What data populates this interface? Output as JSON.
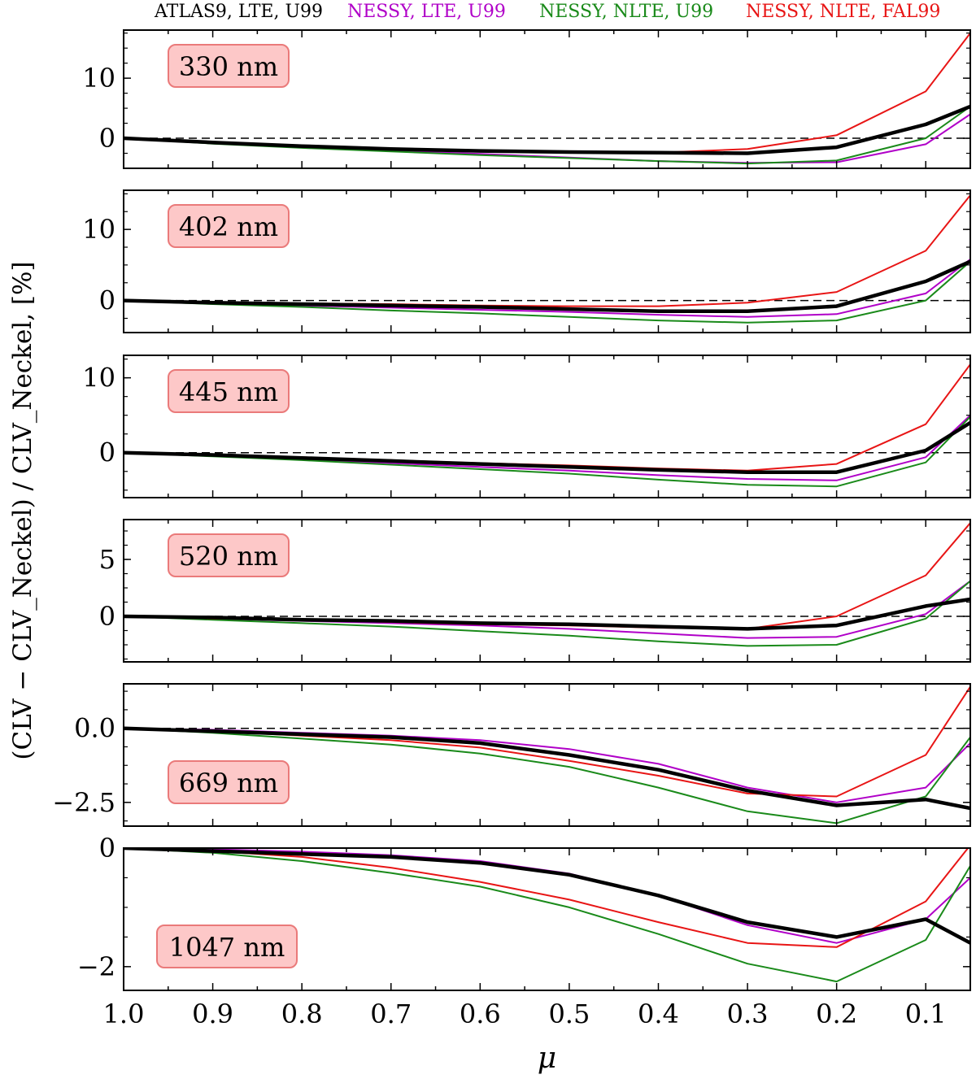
{
  "chart_data": {
    "type": "line",
    "ylabel": "(CLV − CLV_Neckel) / CLV_Neckel, [%]",
    "xlabel": "μ",
    "x": [
      1.0,
      0.9,
      0.8,
      0.7,
      0.6,
      0.5,
      0.4,
      0.3,
      0.2,
      0.1,
      0.05
    ],
    "xlim": [
      1.0,
      0.05
    ],
    "xticks": [
      1.0,
      0.9,
      0.8,
      0.7,
      0.6,
      0.5,
      0.4,
      0.3,
      0.2,
      0.1
    ],
    "xtick_labels": [
      "1.0",
      "0.9",
      "0.8",
      "0.7",
      "0.6",
      "0.5",
      "0.4",
      "0.3",
      "0.2",
      "0.1"
    ],
    "legend": [
      {
        "name": "ATLAS9, LTE, U99",
        "color": "#000000"
      },
      {
        "name": "NESSY, LTE, U99",
        "color": "#b000c8"
      },
      {
        "name": "NESSY, NLTE, U99",
        "color": "#1a8a1a"
      },
      {
        "name": "NESSY, NLTE, FAL99",
        "color": "#e81515"
      }
    ],
    "panels": [
      {
        "label": "330 nm",
        "ylim": [
          -5,
          18
        ],
        "yticks": [
          0,
          10
        ],
        "ytick_labels": [
          "0",
          "10"
        ],
        "series": [
          {
            "name": "ATLAS9, LTE, U99",
            "values": [
              0,
              -0.7,
              -1.3,
              -1.8,
              -2.1,
              -2.3,
              -2.4,
              -2.5,
              -1.5,
              2.3,
              5.3
            ]
          },
          {
            "name": "NESSY, LTE, U99",
            "values": [
              0,
              -0.8,
              -1.5,
              -2.1,
              -2.6,
              -3.2,
              -3.8,
              -4.1,
              -4.0,
              -1.0,
              4.0
            ]
          },
          {
            "name": "NESSY, NLTE, U99",
            "values": [
              0,
              -0.9,
              -1.6,
              -2.2,
              -2.8,
              -3.3,
              -3.8,
              -4.2,
              -3.7,
              0.0,
              5.3
            ]
          },
          {
            "name": "NESSY, NLTE, FAL99",
            "values": [
              0,
              -0.6,
              -1.2,
              -1.7,
              -2.0,
              -2.3,
              -2.4,
              -1.8,
              0.5,
              7.8,
              17.5
            ]
          }
        ]
      },
      {
        "label": "402 nm",
        "ylim": [
          -4.5,
          15.5
        ],
        "yticks": [
          0,
          10
        ],
        "ytick_labels": [
          "0",
          "10"
        ],
        "series": [
          {
            "name": "ATLAS9, LTE, U99",
            "values": [
              0,
              -0.3,
              -0.5,
              -0.7,
              -0.9,
              -1.2,
              -1.5,
              -1.5,
              -0.8,
              2.7,
              5.5
            ]
          },
          {
            "name": "NESSY, LTE, U99",
            "values": [
              0,
              -0.4,
              -0.7,
              -1.0,
              -1.3,
              -1.6,
              -2.0,
              -2.3,
              -1.9,
              1.0,
              5.8
            ]
          },
          {
            "name": "NESSY, NLTE, U99",
            "values": [
              0,
              -0.5,
              -0.9,
              -1.4,
              -1.8,
              -2.3,
              -2.8,
              -3.1,
              -2.8,
              0.0,
              5.5
            ]
          },
          {
            "name": "NESSY, NLTE, FAL99",
            "values": [
              0,
              -0.2,
              -0.4,
              -0.5,
              -0.7,
              -0.8,
              -0.8,
              -0.3,
              1.2,
              7.0,
              14.8
            ]
          }
        ]
      },
      {
        "label": "445 nm",
        "ylim": [
          -6,
          13
        ],
        "yticks": [
          0,
          10
        ],
        "ytick_labels": [
          "0",
          "10"
        ],
        "series": [
          {
            "name": "ATLAS9, LTE, U99",
            "values": [
              0,
              -0.3,
              -0.7,
              -1.1,
              -1.5,
              -1.9,
              -2.3,
              -2.6,
              -2.6,
              0.3,
              4.0
            ]
          },
          {
            "name": "NESSY, LTE, U99",
            "values": [
              0,
              -0.4,
              -0.9,
              -1.4,
              -1.9,
              -2.4,
              -3.0,
              -3.5,
              -3.7,
              -0.6,
              5.0
            ]
          },
          {
            "name": "NESSY, NLTE, U99",
            "values": [
              0,
              -0.5,
              -1.0,
              -1.6,
              -2.2,
              -2.8,
              -3.6,
              -4.3,
              -4.5,
              -1.3,
              4.8
            ]
          },
          {
            "name": "NESSY, NLTE, FAL99",
            "values": [
              0,
              -0.3,
              -0.6,
              -1.0,
              -1.4,
              -1.7,
              -2.1,
              -2.4,
              -1.5,
              3.8,
              11.8
            ]
          }
        ]
      },
      {
        "label": "520 nm",
        "ylim": [
          -4,
          8.5
        ],
        "yticks": [
          0,
          5
        ],
        "ytick_labels": [
          "0",
          "5"
        ],
        "series": [
          {
            "name": "ATLAS9, LTE, U99",
            "values": [
              0,
              -0.1,
              -0.3,
              -0.4,
              -0.6,
              -0.7,
              -0.9,
              -1.1,
              -0.8,
              0.9,
              1.5
            ]
          },
          {
            "name": "NESSY, LTE, U99",
            "values": [
              0,
              -0.2,
              -0.4,
              -0.6,
              -0.8,
              -1.1,
              -1.5,
              -1.9,
              -1.8,
              0.2,
              3.1
            ]
          },
          {
            "name": "NESSY, NLTE, U99",
            "values": [
              0,
              -0.3,
              -0.6,
              -0.9,
              -1.3,
              -1.7,
              -2.2,
              -2.6,
              -2.5,
              -0.2,
              3.1
            ]
          },
          {
            "name": "NESSY, NLTE, FAL99",
            "values": [
              0,
              -0.2,
              -0.3,
              -0.5,
              -0.7,
              -0.8,
              -1.0,
              -1.1,
              0.0,
              3.6,
              8.2
            ]
          }
        ]
      },
      {
        "label": "669 nm",
        "ylim": [
          -3.3,
          1.5
        ],
        "yticks": [
          0.0,
          -2.5
        ],
        "ytick_labels": [
          "0.0",
          "−2.5"
        ],
        "series": [
          {
            "name": "ATLAS9, LTE, U99",
            "values": [
              0,
              -0.1,
              -0.2,
              -0.3,
              -0.5,
              -0.9,
              -1.4,
              -2.1,
              -2.6,
              -2.4,
              -2.7
            ]
          },
          {
            "name": "NESSY, LTE, U99",
            "values": [
              0,
              -0.05,
              -0.15,
              -0.25,
              -0.4,
              -0.7,
              -1.2,
              -2.0,
              -2.5,
              -2.0,
              -0.5
            ]
          },
          {
            "name": "NESSY, NLTE, U99",
            "values": [
              0,
              -0.15,
              -0.35,
              -0.55,
              -0.85,
              -1.3,
              -2.0,
              -2.8,
              -3.2,
              -2.3,
              -0.3
            ]
          },
          {
            "name": "NESSY, NLTE, FAL99",
            "values": [
              0,
              -0.1,
              -0.25,
              -0.4,
              -0.65,
              -1.1,
              -1.6,
              -2.2,
              -2.3,
              -0.9,
              1.4
            ]
          }
        ]
      },
      {
        "label": "1047 nm",
        "ylim": [
          -2.4,
          0
        ],
        "yticks": [
          0,
          -2
        ],
        "ytick_labels": [
          "0",
          "−2"
        ],
        "series": [
          {
            "name": "ATLAS9, LTE, U99",
            "values": [
              0,
              -0.05,
              -0.1,
              -0.15,
              -0.25,
              -0.45,
              -0.8,
              -1.25,
              -1.5,
              -1.2,
              -1.6
            ]
          },
          {
            "name": "NESSY, LTE, U99",
            "values": [
              0,
              -0.02,
              -0.06,
              -0.12,
              -0.22,
              -0.43,
              -0.8,
              -1.3,
              -1.6,
              -1.2,
              -0.5
            ]
          },
          {
            "name": "NESSY, NLTE, U99",
            "values": [
              0,
              -0.08,
              -0.22,
              -0.42,
              -0.65,
              -1.0,
              -1.45,
              -1.95,
              -2.25,
              -1.55,
              -0.3
            ]
          },
          {
            "name": "NESSY, NLTE, FAL99",
            "values": [
              0,
              -0.05,
              -0.15,
              -0.33,
              -0.57,
              -0.87,
              -1.25,
              -1.6,
              -1.67,
              -0.9,
              0.05
            ]
          }
        ]
      }
    ]
  }
}
